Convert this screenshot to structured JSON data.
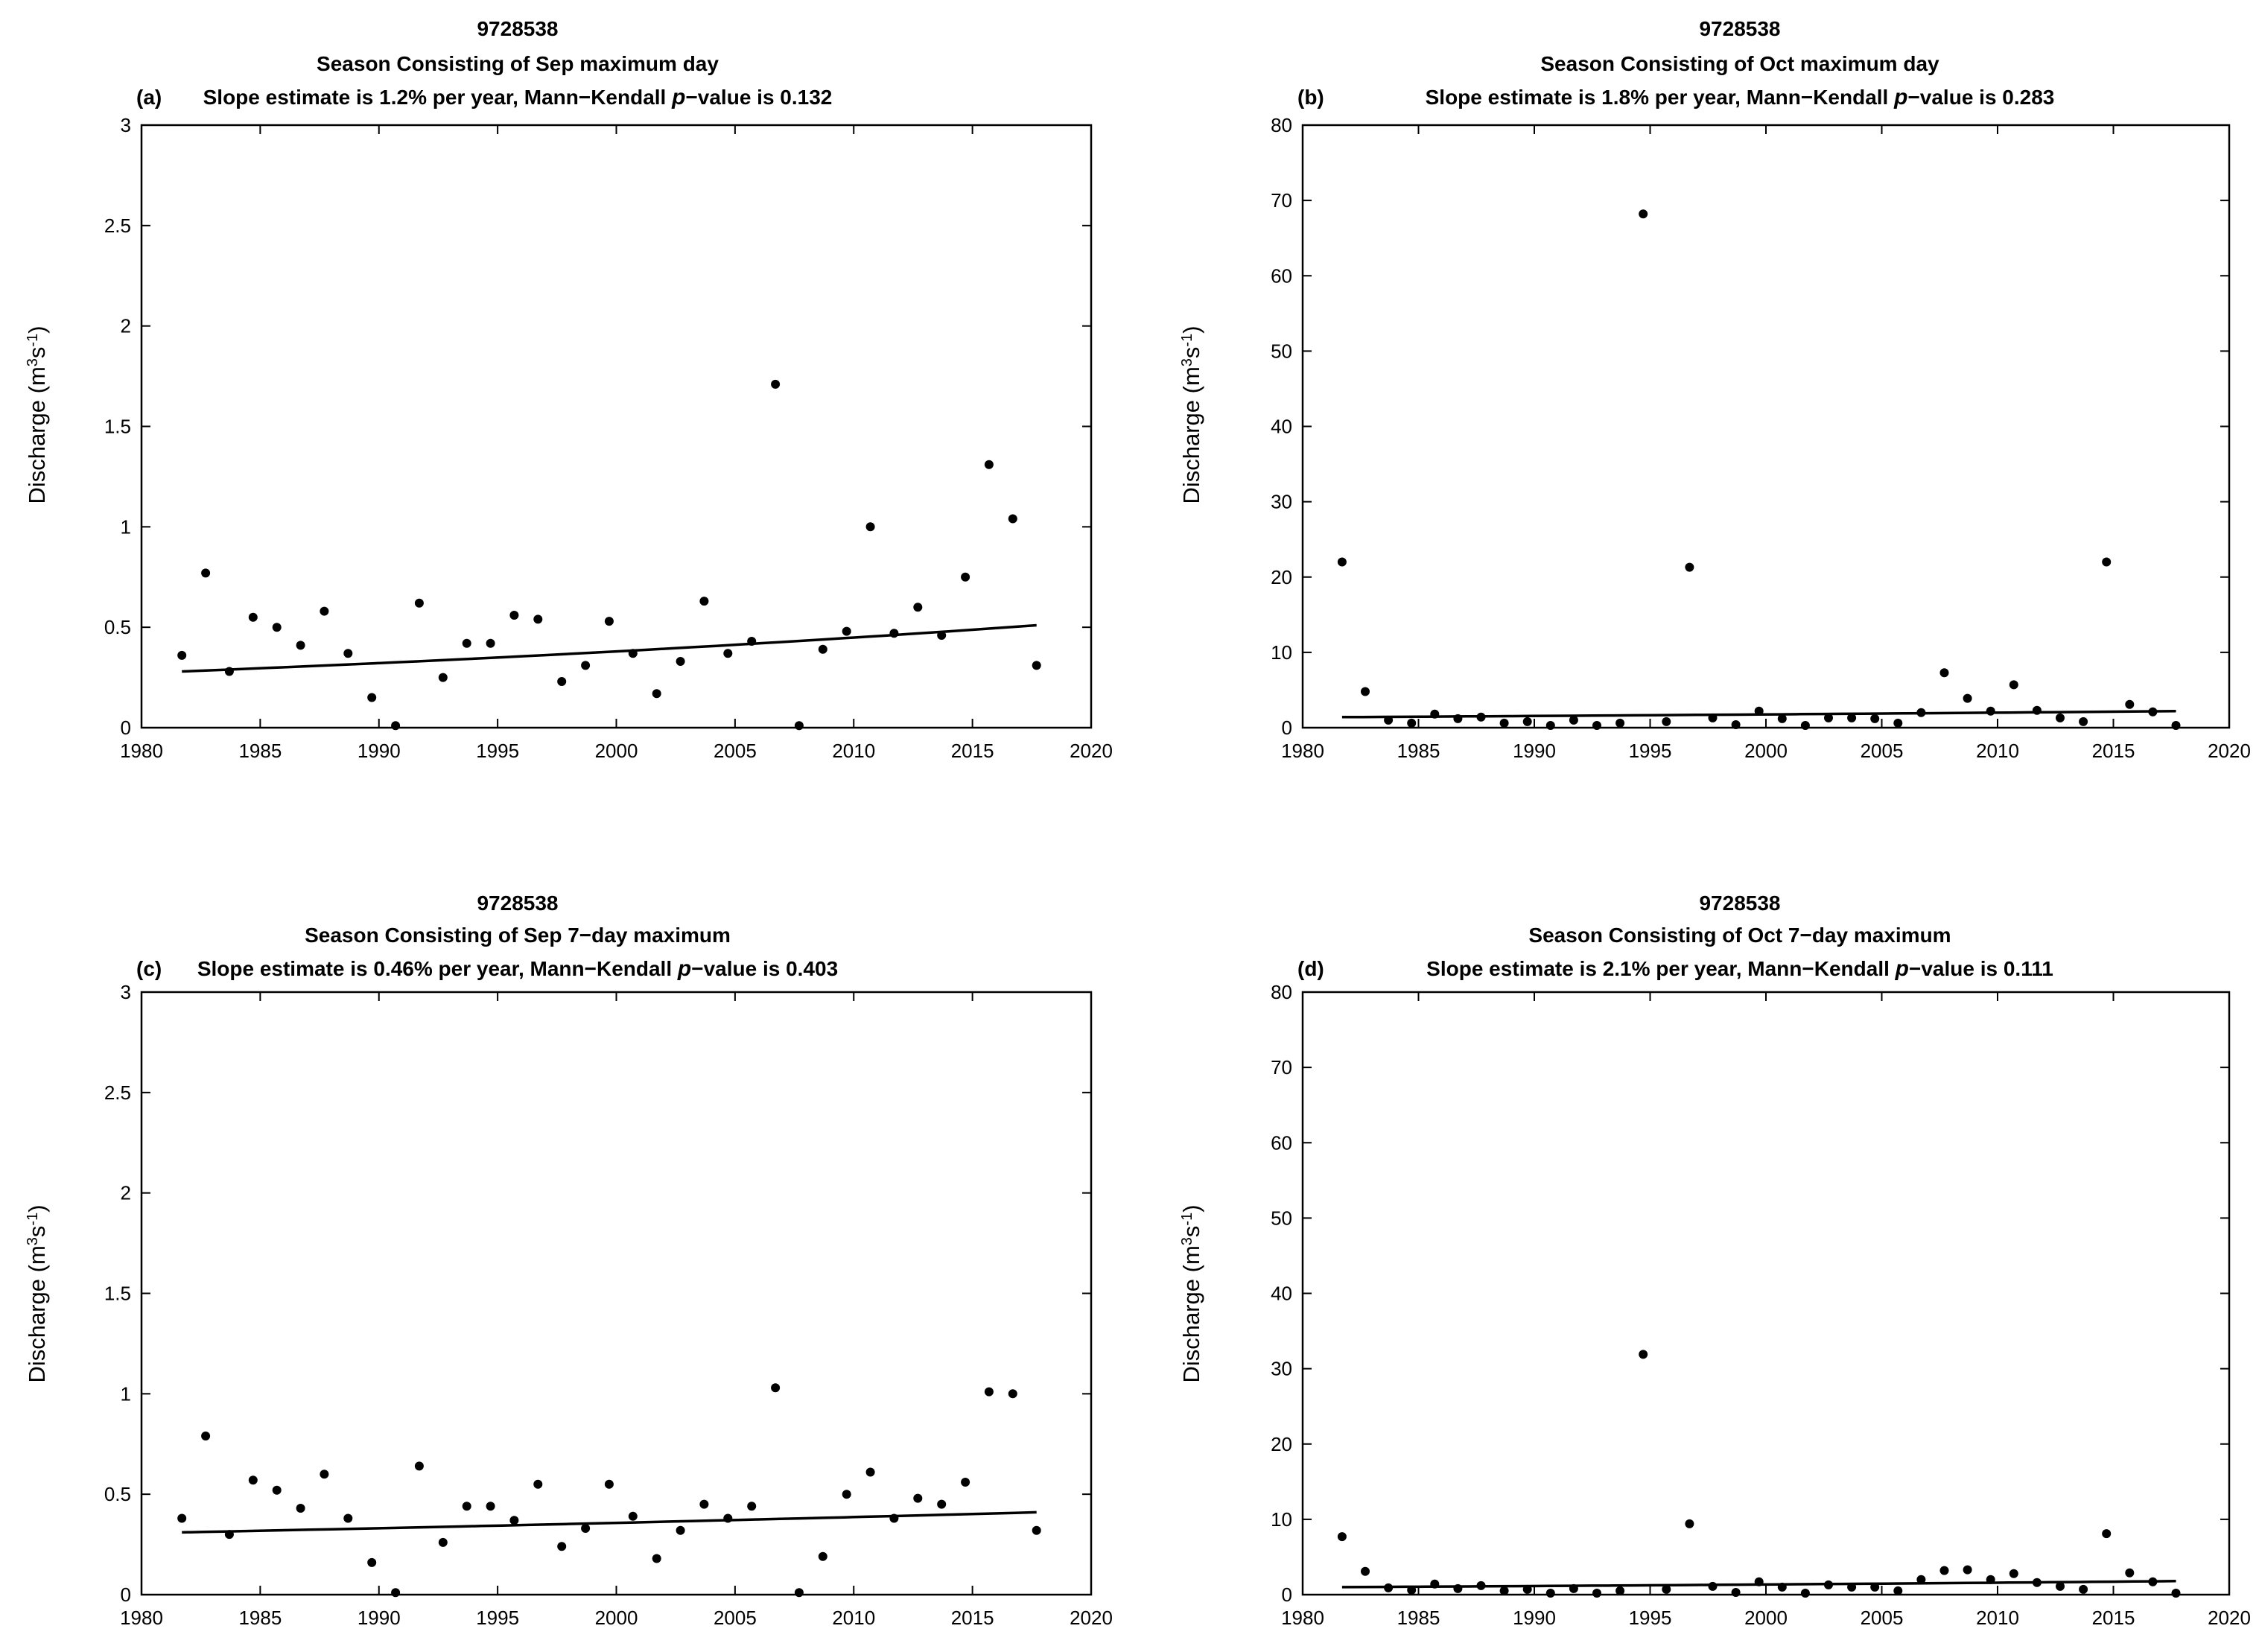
{
  "chart_data": [
    {
      "panel_label": "(a)",
      "type": "scatter",
      "station": "9728538",
      "subtitle": "Season Consisting of Sep  maximum day",
      "slope_prefix": "Slope estimate is 1.2% per year, Mann−Kendall ",
      "slope_italic": "p",
      "slope_suffix": "−value is 0.132",
      "ylabel_main": "Discharge (m",
      "ylabel_sup1": "3",
      "ylabel_mid": "s",
      "ylabel_sup2": "-1",
      "ylabel_end": ")",
      "xlim": [
        1980,
        2020
      ],
      "ylim": [
        0,
        3
      ],
      "xticks": [
        1980,
        1985,
        1990,
        1995,
        2000,
        2005,
        2010,
        2015,
        2020
      ],
      "yticks": [
        0,
        0.5,
        1,
        1.5,
        2,
        2.5,
        3
      ],
      "x": [
        1981.7,
        1982.7,
        1983.7,
        1984.7,
        1985.7,
        1986.7,
        1987.7,
        1988.7,
        1989.7,
        1990.7,
        1991.7,
        1992.7,
        1993.7,
        1994.7,
        1995.7,
        1996.7,
        1997.7,
        1998.7,
        1999.7,
        2000.7,
        2001.7,
        2002.7,
        2003.7,
        2004.7,
        2005.7,
        2006.7,
        2007.7,
        2008.7,
        2009.7,
        2010.7,
        2011.7,
        2012.7,
        2013.7,
        2014.7,
        2015.7,
        2016.7,
        2017.7
      ],
      "y": [
        0.36,
        0.77,
        0.28,
        0.55,
        0.5,
        0.41,
        0.58,
        0.37,
        0.15,
        0.01,
        0.62,
        0.25,
        0.42,
        0.42,
        0.56,
        0.54,
        0.23,
        0.31,
        0.53,
        0.37,
        0.17,
        0.33,
        0.63,
        0.37,
        0.43,
        1.71,
        0.01,
        0.39,
        0.48,
        1.0,
        0.47,
        0.6,
        0.46,
        0.75,
        1.31,
        1.04,
        0.31
      ],
      "trend": {
        "x0": 1981.7,
        "y0": 0.28,
        "x1": 2017.7,
        "y1": 0.51
      }
    },
    {
      "panel_label": "(b)",
      "type": "scatter",
      "station": "9728538",
      "subtitle": "Season Consisting of Oct  maximum day",
      "slope_prefix": "Slope estimate is 1.8% per year, Mann−Kendall ",
      "slope_italic": "p",
      "slope_suffix": "−value is 0.283",
      "ylabel_main": "Discharge (m",
      "ylabel_sup1": "3",
      "ylabel_mid": "s",
      "ylabel_sup2": "-1",
      "ylabel_end": ")",
      "xlim": [
        1980,
        2020
      ],
      "ylim": [
        0,
        80
      ],
      "xticks": [
        1980,
        1985,
        1990,
        1995,
        2000,
        2005,
        2010,
        2015,
        2020
      ],
      "yticks": [
        0,
        10,
        20,
        30,
        40,
        50,
        60,
        70,
        80
      ],
      "x": [
        1981.7,
        1982.7,
        1983.7,
        1984.7,
        1985.7,
        1986.7,
        1987.7,
        1988.7,
        1989.7,
        1990.7,
        1991.7,
        1992.7,
        1993.7,
        1994.7,
        1995.7,
        1996.7,
        1997.7,
        1998.7,
        1999.7,
        2000.7,
        2001.7,
        2002.7,
        2003.7,
        2004.7,
        2005.7,
        2006.7,
        2007.7,
        2008.7,
        2009.7,
        2010.7,
        2011.7,
        2012.7,
        2013.7,
        2014.7,
        2015.7,
        2016.7,
        2017.7
      ],
      "y": [
        22,
        4.8,
        1.0,
        0.6,
        1.8,
        1.2,
        1.4,
        0.6,
        0.8,
        0.3,
        1.0,
        0.3,
        0.6,
        68.2,
        0.8,
        21.3,
        1.3,
        0.4,
        2.2,
        1.2,
        0.3,
        1.3,
        1.3,
        1.2,
        0.6,
        2.0,
        7.3,
        3.9,
        2.2,
        5.7,
        2.3,
        1.3,
        0.8,
        22,
        3.1,
        2.1,
        0.3
      ],
      "trend": {
        "x0": 1981.7,
        "y0": 1.4,
        "x1": 2017.7,
        "y1": 2.2
      }
    },
    {
      "panel_label": "(c)",
      "type": "scatter",
      "station": "9728538",
      "subtitle": "Season Consisting of Sep  7−day maximum",
      "slope_prefix": "Slope estimate is 0.46% per year, Mann−Kendall ",
      "slope_italic": "p",
      "slope_suffix": "−value is 0.403",
      "ylabel_main": "Discharge (m",
      "ylabel_sup1": "3",
      "ylabel_mid": "s",
      "ylabel_sup2": "-1",
      "ylabel_end": ")",
      "xlim": [
        1980,
        2020
      ],
      "ylim": [
        0,
        3
      ],
      "xticks": [
        1980,
        1985,
        1990,
        1995,
        2000,
        2005,
        2010,
        2015,
        2020
      ],
      "yticks": [
        0,
        0.5,
        1,
        1.5,
        2,
        2.5,
        3
      ],
      "x": [
        1981.7,
        1982.7,
        1983.7,
        1984.7,
        1985.7,
        1986.7,
        1987.7,
        1988.7,
        1989.7,
        1990.7,
        1991.7,
        1992.7,
        1993.7,
        1994.7,
        1995.7,
        1996.7,
        1997.7,
        1998.7,
        1999.7,
        2000.7,
        2001.7,
        2002.7,
        2003.7,
        2004.7,
        2005.7,
        2006.7,
        2007.7,
        2008.7,
        2009.7,
        2010.7,
        2011.7,
        2012.7,
        2013.7,
        2014.7,
        2015.7,
        2016.7,
        2017.7
      ],
      "y": [
        0.38,
        0.79,
        0.3,
        0.57,
        0.52,
        0.43,
        0.6,
        0.38,
        0.16,
        0.01,
        0.64,
        0.26,
        0.44,
        0.44,
        0.37,
        0.55,
        0.24,
        0.33,
        0.55,
        0.39,
        0.18,
        0.32,
        0.45,
        0.38,
        0.44,
        1.03,
        0.01,
        0.19,
        0.5,
        0.61,
        0.38,
        0.48,
        0.45,
        0.56,
        1.01,
        1.0,
        0.32
      ],
      "trend": {
        "x0": 1981.7,
        "y0": 0.31,
        "x1": 2017.7,
        "y1": 0.41
      }
    },
    {
      "panel_label": "(d)",
      "type": "scatter",
      "station": "9728538",
      "subtitle": "Season Consisting of Oct  7−day maximum",
      "slope_prefix": "Slope estimate is 2.1% per year, Mann−Kendall ",
      "slope_italic": "p",
      "slope_suffix": "−value is 0.111",
      "ylabel_main": "Discharge (m",
      "ylabel_sup1": "3",
      "ylabel_mid": "s",
      "ylabel_sup2": "-1",
      "ylabel_end": ")",
      "xlim": [
        1980,
        2020
      ],
      "ylim": [
        0,
        80
      ],
      "xticks": [
        1980,
        1985,
        1990,
        1995,
        2000,
        2005,
        2010,
        2015,
        2020
      ],
      "yticks": [
        0,
        10,
        20,
        30,
        40,
        50,
        60,
        70,
        80
      ],
      "x": [
        1981.7,
        1982.7,
        1983.7,
        1984.7,
        1985.7,
        1986.7,
        1987.7,
        1988.7,
        1989.7,
        1990.7,
        1991.7,
        1992.7,
        1993.7,
        1994.7,
        1995.7,
        1996.7,
        1997.7,
        1998.7,
        1999.7,
        2000.7,
        2001.7,
        2002.7,
        2003.7,
        2004.7,
        2005.7,
        2006.7,
        2007.7,
        2008.7,
        2009.7,
        2010.7,
        2011.7,
        2012.7,
        2013.7,
        2014.7,
        2015.7,
        2016.7,
        2017.7
      ],
      "y": [
        7.7,
        3.1,
        0.9,
        0.6,
        1.4,
        0.8,
        1.2,
        0.5,
        0.7,
        0.2,
        0.8,
        0.2,
        0.5,
        31.9,
        0.7,
        9.4,
        1.1,
        0.3,
        1.7,
        1.0,
        0.2,
        1.3,
        1.0,
        1.0,
        0.5,
        2.0,
        3.2,
        3.3,
        2.0,
        2.8,
        1.6,
        1.1,
        0.7,
        8.1,
        2.9,
        1.7,
        0.2
      ],
      "trend": {
        "x0": 1981.7,
        "y0": 1.0,
        "x1": 2017.7,
        "y1": 1.8
      }
    }
  ]
}
